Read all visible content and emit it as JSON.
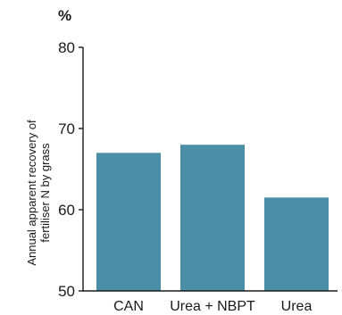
{
  "chart_data": {
    "type": "bar",
    "unit": "%",
    "ylabel_lines": [
      "Annual apparent recovery of",
      "fertiliser N by grass"
    ],
    "categories": [
      "CAN",
      "Urea + NBPT",
      "Urea"
    ],
    "values": [
      67.0,
      68.0,
      61.5
    ],
    "ylim": [
      50,
      80
    ],
    "yticks": [
      50,
      60,
      70,
      80
    ],
    "bar_color": "#4a8ea8",
    "grid": false,
    "legend": "none"
  }
}
